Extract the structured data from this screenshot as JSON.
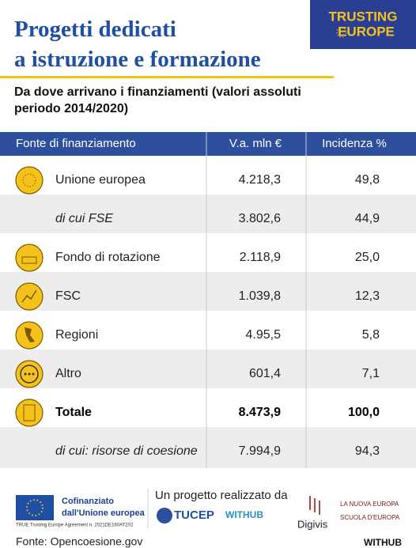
{
  "logo": {
    "line1": "TRUSTING",
    "line2": "EUROPE"
  },
  "header": {
    "title_line1": "Progetti dedicati",
    "title_line2": "a istruzione e formazione",
    "subtitle_line1": "Da dove arrivano i finanziamenti (valori assoluti",
    "subtitle_line2": "periodo 2014/2020)"
  },
  "table": {
    "columns": [
      "Fonte di finanziamento",
      "V.a. mln €",
      "Incidenza %"
    ],
    "rows": [
      [
        "Unione europea",
        "4.218,3",
        "49,8"
      ],
      [
        "di cui FSE",
        "3.802,6",
        "44,9"
      ],
      [
        "Fondo di rotazione",
        "2.118,9",
        "25,0"
      ],
      [
        "FSC",
        "1.039,8",
        "12,3"
      ],
      [
        "Regioni",
        "4.95,5",
        "5,8"
      ],
      [
        "Altro",
        "601,4",
        "7,1"
      ],
      [
        "Totale",
        "8.473,9",
        "100,0"
      ],
      [
        "di cui: risorse di coesione",
        "7.994,9",
        "94,3"
      ]
    ]
  },
  "footer": {
    "cofin_line1": "Cofinanziato",
    "cofin_line2": "dall'Unione europea",
    "agreement": "TRUE Trusting Europe Agreement n. 2021DE160AT202",
    "project_by": "Un progetto realizzato da",
    "tucep": "TUCEP",
    "withub_logo": "WITHUB",
    "digivis": "Digivis",
    "nuova_europa": "LA NUOVA EUROPA",
    "scuola": "SCUOLA D'EUROPA",
    "source": "Fonte: Opencoesione.gov",
    "brand": "WITHUB"
  }
}
